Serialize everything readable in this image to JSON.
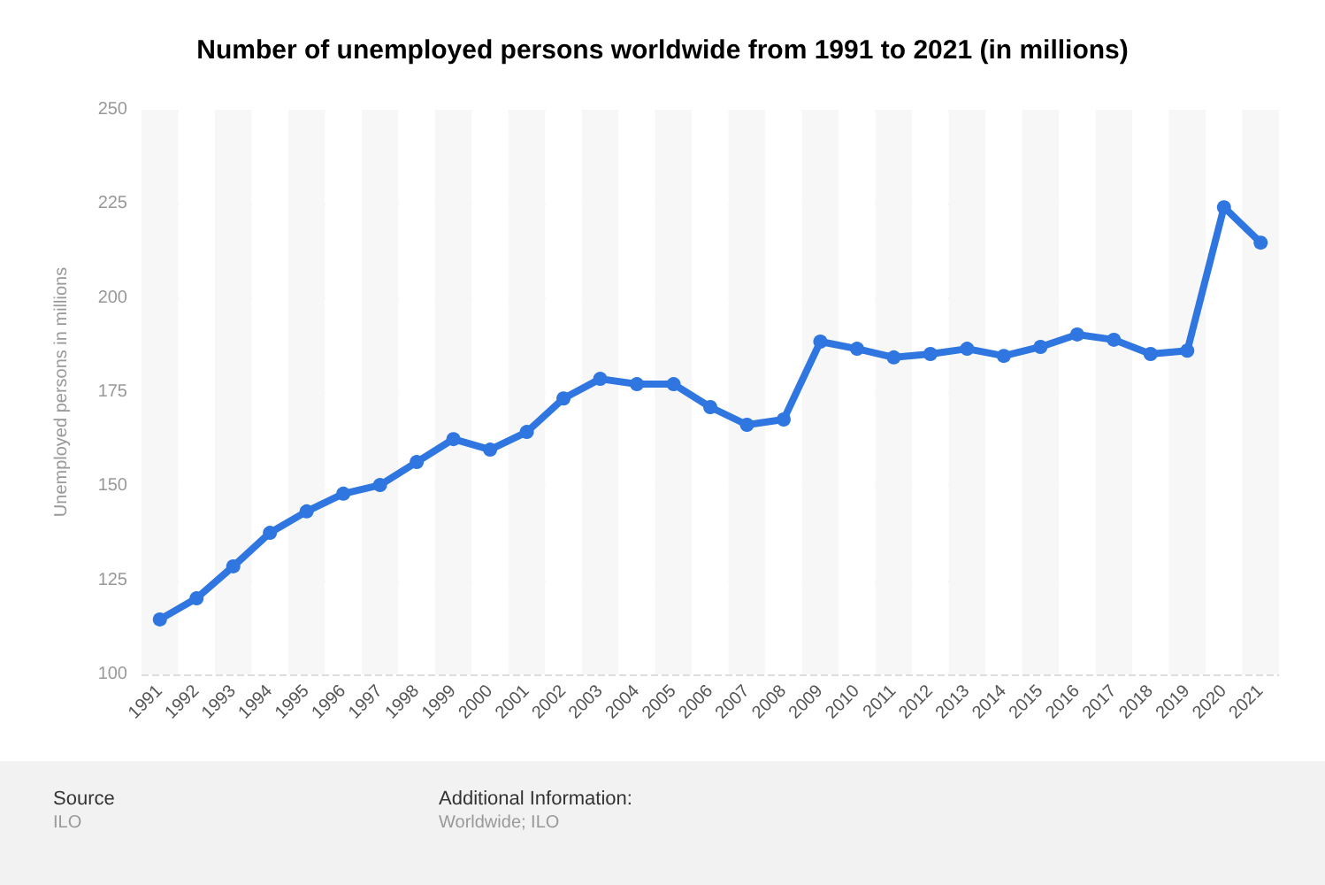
{
  "chart_data": {
    "type": "line",
    "title": "Number of unemployed persons worldwide from 1991 to 2021 (in millions)",
    "ylabel": "Unemployed persons in millions",
    "categories": [
      "1991",
      "1992",
      "1993",
      "1994",
      "1995",
      "1996",
      "1997",
      "1998",
      "1999",
      "2000",
      "2001",
      "2002",
      "2003",
      "2004",
      "2005",
      "2006",
      "2007",
      "2008",
      "2009",
      "2010",
      "2011",
      "2012",
      "2013",
      "2014",
      "2015",
      "2016",
      "2017",
      "2018",
      "2019",
      "2020",
      "2021"
    ],
    "series": [
      {
        "color": "#2f76e0",
        "values": [
          114.6,
          120.2,
          128.7,
          137.6,
          143.3,
          148,
          150.3,
          156.4,
          162.5,
          159.7,
          164.4,
          173.3,
          178.5,
          177.1,
          177.1,
          171,
          166.3,
          167.7,
          188.4,
          186.5,
          184.2,
          185.1,
          186.5,
          184.6,
          187,
          190.3,
          188.9,
          185.1,
          186,
          224.1,
          214.7
        ]
      }
    ],
    "ylim": [
      100,
      250
    ],
    "yticks": [
      100,
      125,
      150,
      175,
      200,
      225,
      250
    ],
    "grid": "y",
    "marker": "circle",
    "line_style": "solid",
    "annotations": [
      "Source",
      "ILO",
      "Additional Information:",
      "Worldwide; ILO"
    ]
  }
}
